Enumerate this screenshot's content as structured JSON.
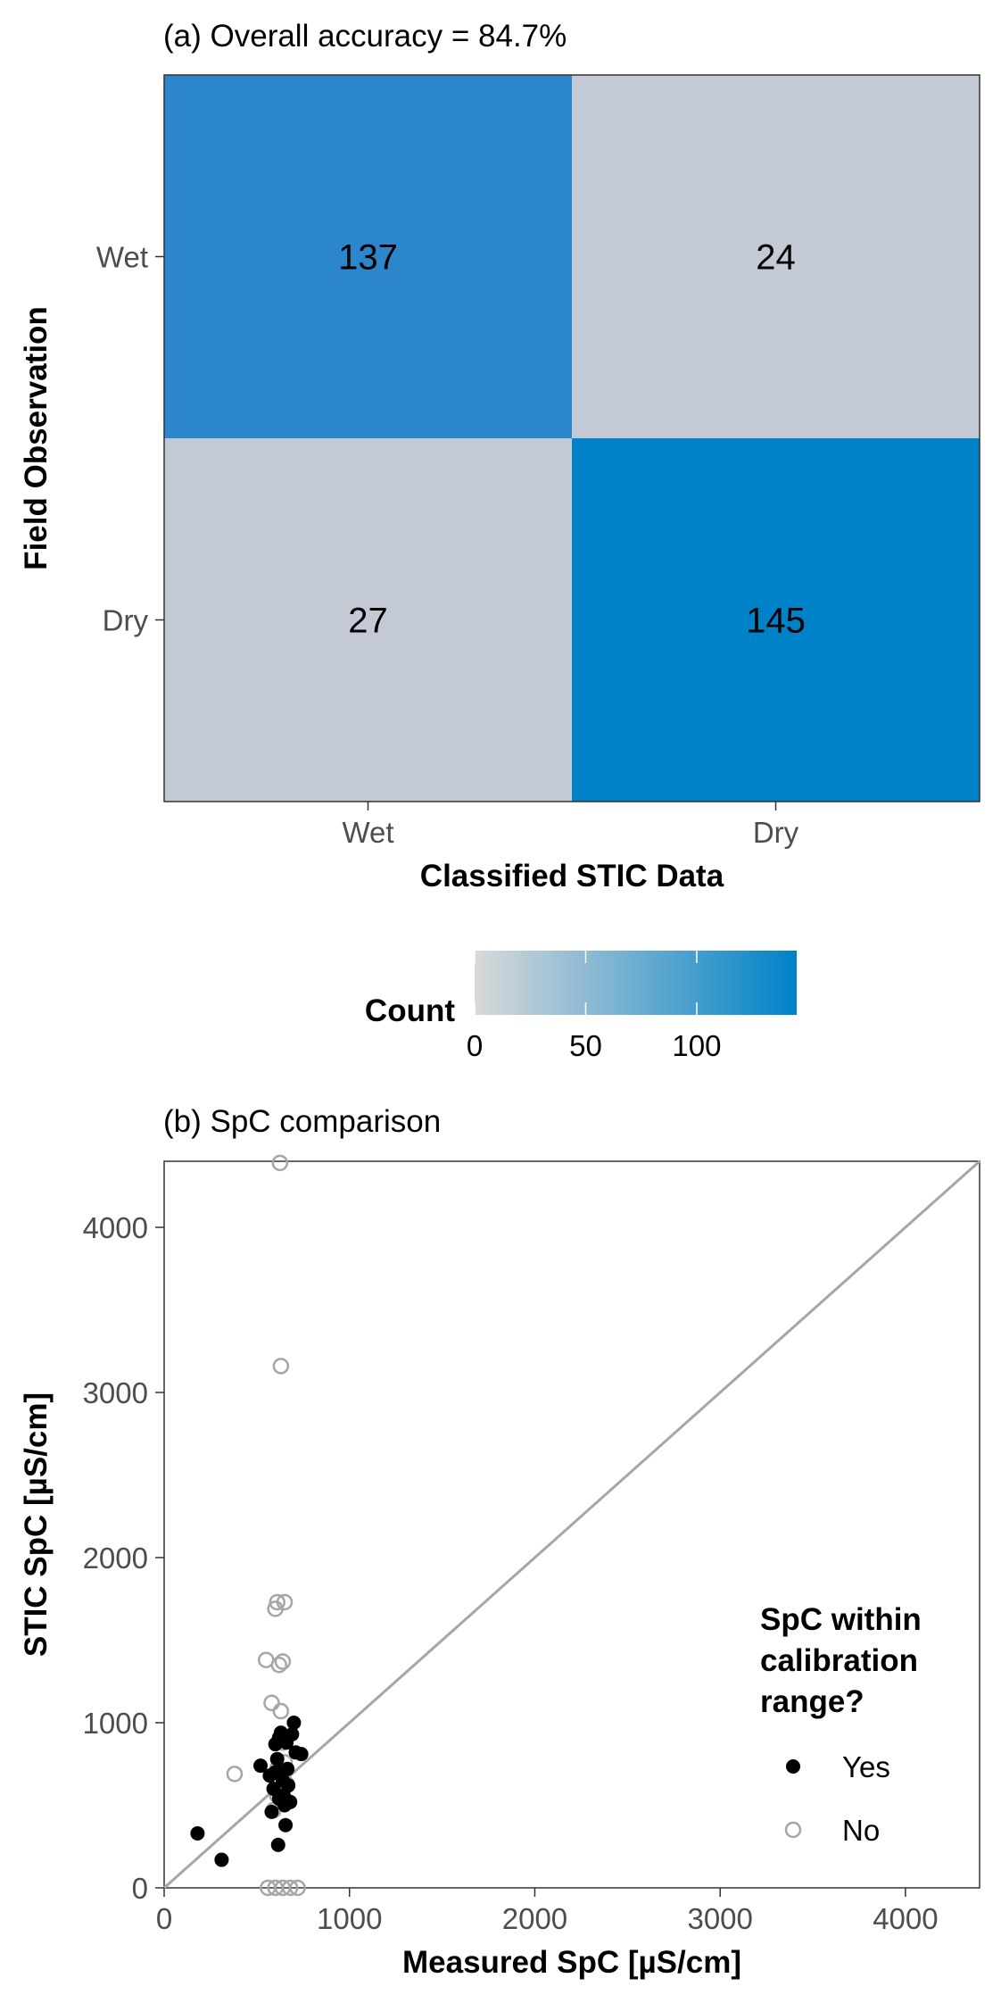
{
  "chart_data": [
    {
      "type": "heatmap",
      "title": "(a) Overall accuracy = 84.7%",
      "xlabel": "Classified STIC Data",
      "ylabel": "Field Observation",
      "x_categories": [
        "Wet",
        "Dry"
      ],
      "y_categories": [
        "Wet",
        "Dry"
      ],
      "cells": [
        {
          "x": "Wet",
          "y": "Wet",
          "value": 137
        },
        {
          "x": "Dry",
          "y": "Wet",
          "value": 24
        },
        {
          "x": "Wet",
          "y": "Dry",
          "value": 27
        },
        {
          "x": "Dry",
          "y": "Dry",
          "value": 145
        }
      ],
      "colorbar": {
        "title": "Count",
        "ticks": [
          0,
          50,
          100
        ],
        "range": [
          0,
          145
        ],
        "low_color": "#d9d9d9",
        "high_color": "#0082c8"
      }
    },
    {
      "type": "scatter",
      "title": "(b) SpC comparison",
      "xlabel": "Measured SpC [µS/cm]",
      "ylabel": "STIC SpC [µS/cm]",
      "xlim": [
        0,
        4400
      ],
      "ylim": [
        0,
        4400
      ],
      "xticks": [
        0,
        1000,
        2000,
        3000,
        4000
      ],
      "yticks": [
        0,
        1000,
        2000,
        3000,
        4000
      ],
      "one_to_one_line": true,
      "legend": {
        "title_lines": [
          "SpC within",
          "calibration",
          "range?"
        ],
        "placement": "right",
        "entries": [
          "Yes",
          "No"
        ]
      },
      "series": [
        {
          "name": "Yes",
          "marker": "filled",
          "color": "#000000",
          "points": [
            [
              180,
              330
            ],
            [
              310,
              170
            ],
            [
              520,
              740
            ],
            [
              570,
              680
            ],
            [
              580,
              460
            ],
            [
              590,
              600
            ],
            [
              600,
              870
            ],
            [
              610,
              780
            ],
            [
              615,
              260
            ],
            [
              620,
              910
            ],
            [
              630,
              940
            ],
            [
              635,
              700
            ],
            [
              640,
              650
            ],
            [
              645,
              560
            ],
            [
              650,
              500
            ],
            [
              655,
              380
            ],
            [
              660,
              880
            ],
            [
              665,
              720
            ],
            [
              670,
              620
            ],
            [
              680,
              520
            ],
            [
              690,
              930
            ],
            [
              700,
              1000
            ],
            [
              710,
              820
            ],
            [
              740,
              810
            ],
            [
              620,
              540
            ],
            [
              600,
              700
            ]
          ]
        },
        {
          "name": "No",
          "marker": "open",
          "color": "#a6a6a6",
          "points": [
            [
              550,
              1380
            ],
            [
              580,
              1120
            ],
            [
              600,
              1690
            ],
            [
              610,
              1730
            ],
            [
              620,
              1350
            ],
            [
              625,
              4390
            ],
            [
              630,
              3160
            ],
            [
              640,
              1370
            ],
            [
              650,
              1730
            ],
            [
              630,
              1070
            ],
            [
              640,
              880
            ],
            [
              650,
              760
            ],
            [
              610,
              720
            ],
            [
              620,
              640
            ],
            [
              660,
              630
            ],
            [
              610,
              560
            ],
            [
              640,
              520
            ],
            [
              590,
              470
            ],
            [
              380,
              690
            ],
            [
              560,
              0
            ],
            [
              600,
              0
            ],
            [
              640,
              0
            ],
            [
              680,
              0
            ],
            [
              720,
              0
            ]
          ]
        }
      ]
    }
  ]
}
